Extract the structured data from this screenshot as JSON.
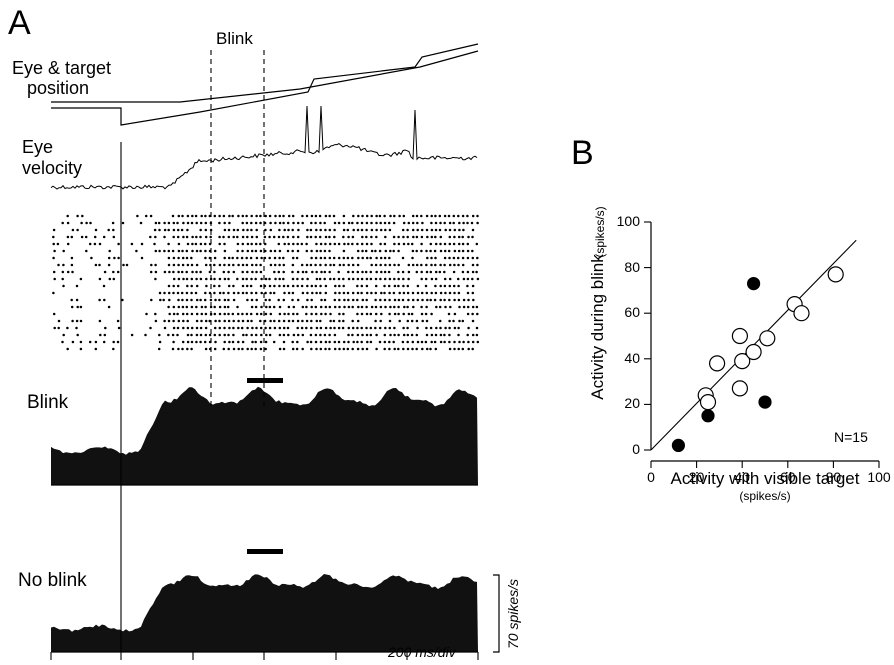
{
  "panel_a": {
    "letter": "A",
    "blink_marker": "Blink",
    "eye_target_label": [
      "Eye & target",
      "position"
    ],
    "eye_velocity_label": [
      "Eye",
      "velocity"
    ],
    "hist_blink_label": "Blink",
    "hist_noblink_label": "No blink",
    "scale_bar_label": "70 spikes/s",
    "time_scale_label": "200 ms/div",
    "raster_trials": 20
  },
  "panel_b": {
    "letter": "B",
    "n_label": "N=15"
  },
  "chart_data": {
    "type": "scatter",
    "xlabel": "Activity with visible target",
    "xlabel_unit": "(spikes/s)",
    "ylabel": "Activity during blink",
    "ylabel_unit": "(spikes/s)",
    "xlim": [
      0,
      100
    ],
    "ylim": [
      0,
      100
    ],
    "x_ticks": [
      "0",
      "20",
      "40",
      "60",
      "80",
      "100"
    ],
    "y_ticks": [
      "0",
      "20",
      "40",
      "60",
      "80",
      "100"
    ],
    "identity_line": true,
    "series": [
      {
        "marker": "open-circle",
        "points": [
          [
            24,
            24
          ],
          [
            25,
            21
          ],
          [
            29,
            38
          ],
          [
            39,
            50
          ],
          [
            39,
            27
          ],
          [
            40,
            39
          ],
          [
            45,
            43
          ],
          [
            51,
            49
          ],
          [
            63,
            64
          ],
          [
            66,
            60
          ],
          [
            81,
            77
          ]
        ]
      },
      {
        "marker": "filled-circle",
        "points": [
          [
            12,
            2
          ],
          [
            25,
            15
          ],
          [
            45,
            73
          ],
          [
            50,
            21
          ]
        ]
      }
    ]
  }
}
